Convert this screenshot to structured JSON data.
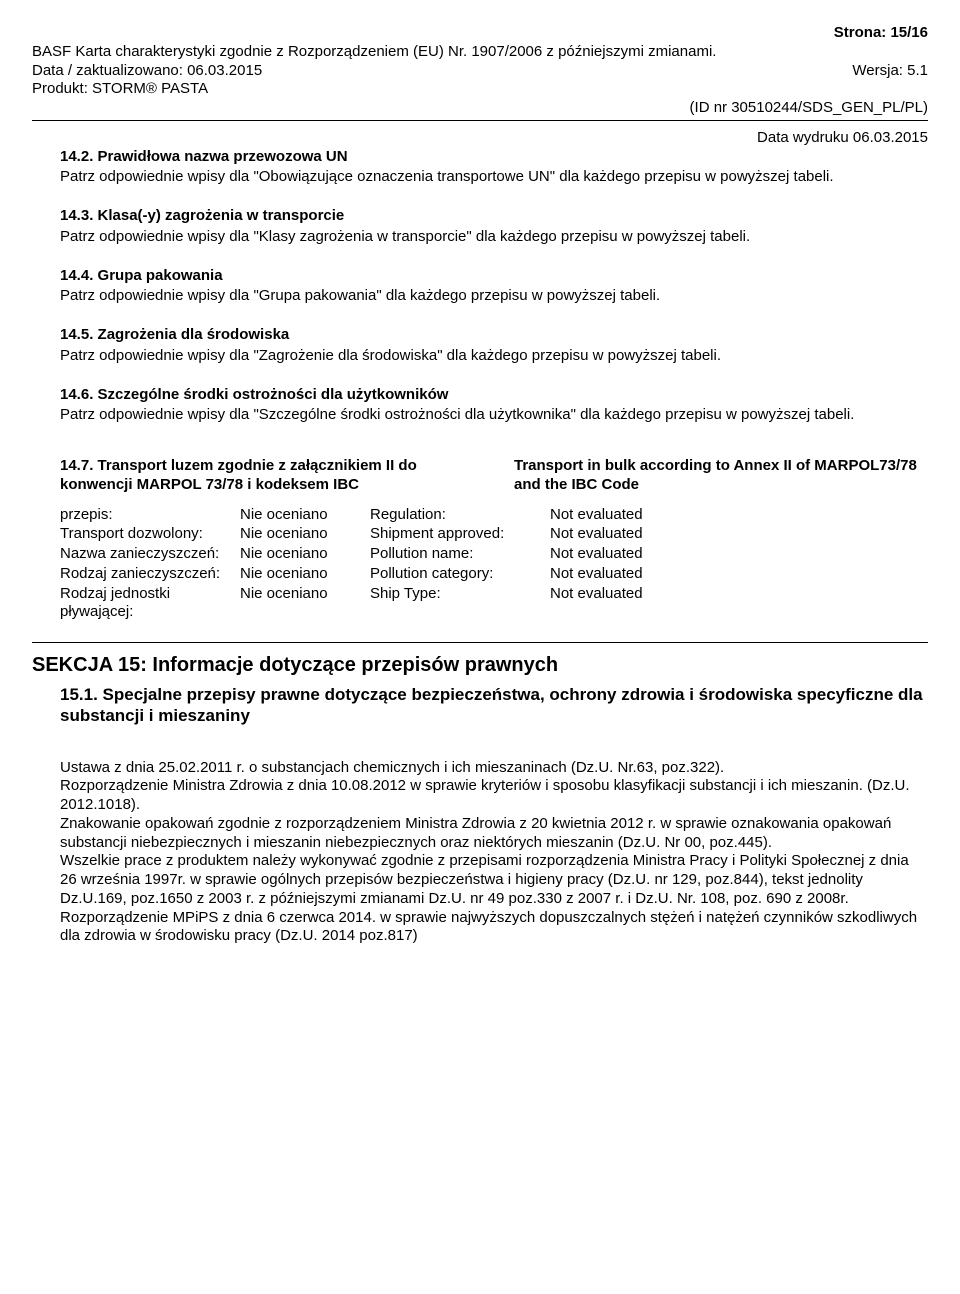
{
  "header": {
    "page_label": "Strona: 15/16",
    "line1": "BASF Karta charakterystyki zgodnie z Rozporządzeniem (EU) Nr. 1907/2006 z późniejszymi zmianami.",
    "date_left": "Data / zaktualizowano: 06.03.2015",
    "version": "Wersja: 5.1",
    "product": "Produkt: STORM® PASTA",
    "id": "(ID nr 30510244/SDS_GEN_PL/PL)",
    "print_date": "Data wydruku 06.03.2015"
  },
  "s142": {
    "title": "14.2. Prawidłowa nazwa przewozowa UN",
    "body": "Patrz odpowiednie wpisy dla \"Obowiązujące oznaczenia transportowe UN\" dla każdego przepisu w powyższej tabeli."
  },
  "s143": {
    "title": "14.3. Klasa(-y) zagrożenia w transporcie",
    "body": "Patrz odpowiednie wpisy dla \"Klasy zagrożenia w transporcie\" dla każdego przepisu w powyższej tabeli."
  },
  "s144": {
    "title": "14.4. Grupa pakowania",
    "body": "Patrz odpowiednie wpisy dla \"Grupa pakowania\" dla każdego przepisu w powyższej tabeli."
  },
  "s145": {
    "title": "14.5. Zagrożenia dla środowiska",
    "body": "Patrz odpowiednie wpisy dla \"Zagrożenie dla  środowiska\" dla każdego przepisu w powyższej tabeli."
  },
  "s146": {
    "title": "14.6. Szczególne środki ostrożności dla użytkowników",
    "body": "Patrz odpowiednie wpisy dla \"Szczególne środki ostrożności dla użytkownika\" dla każdego przepisu w powyższej tabeli."
  },
  "s147": {
    "left_title": "14.7. Transport luzem zgodnie z załącznikiem II do konwencji MARPOL 73/78 i kodeksem IBC",
    "right_title": "Transport in bulk according to Annex II of MARPOL73/78 and the IBC Code",
    "rows": [
      {
        "lab1": "przepis:",
        "val1": "Nie oceniano",
        "lab2": "Regulation:",
        "val2": "Not evaluated"
      },
      {
        "lab1": "Transport dozwolony:",
        "val1": "Nie oceniano",
        "lab2": "Shipment approved:",
        "val2": "Not evaluated"
      },
      {
        "lab1": "Nazwa zanieczyszczeń:",
        "val1": "Nie oceniano",
        "lab2": "Pollution name:",
        "val2": "Not evaluated"
      },
      {
        "lab1": "Rodzaj zanieczyszczeń:",
        "val1": "Nie oceniano",
        "lab2": "Pollution category:",
        "val2": "Not evaluated"
      },
      {
        "lab1": "Rodzaj jednostki pływającej:",
        "val1": "Nie oceniano",
        "lab2": "Ship Type:",
        "val2": "Not evaluated"
      }
    ]
  },
  "s15": {
    "title": "SEKCJA 15: Informacje dotyczące przepisów prawnych",
    "sub": "15.1. Specjalne przepisy prawne dotyczące bezpieczeństwa, ochrony zdrowia i środowiska specyficzne dla substancji i mieszaniny",
    "p1": "Ustawa z dnia 25.02.2011 r. o substancjach chemicznych i ich mieszaninach (Dz.U. Nr.63, poz.322).",
    "p2": "Rozporządzenie Ministra Zdrowia z dnia 10.08.2012 w sprawie kryteriów i sposobu klasyfikacji substancji i ich mieszanin. (Dz.U. 2012.1018).",
    "p3": "Znakowanie opakowań zgodnie z rozporządzeniem Ministra Zdrowia z 20 kwietnia 2012 r. w sprawie oznakowania opakowań substancji niebezpiecznych i mieszanin niebezpiecznych oraz niektórych mieszanin (Dz.U. Nr 00, poz.445).",
    "p4": "Wszelkie prace z produktem należy wykonywać zgodnie z przepisami rozporządzenia Ministra Pracy i Polityki Społecznej z dnia 26 września 1997r. w sprawie ogólnych przepisów bezpieczeństwa i higieny pracy (Dz.U. nr 129, poz.844), tekst jednolity Dz.U.169, poz.1650 z 2003 r. z późniejszymi zmianami Dz.U. nr 49 poz.330 z 2007 r. i Dz.U. Nr. 108, poz. 690 z 2008r.",
    "p5": "Rozporządzenie MPiPS z dnia 6 czerwca 2014. w sprawie najwyższych dopuszczalnych stężeń i natężeń czynników szkodliwych dla zdrowia w środowisku pracy (Dz.U. 2014 poz.817)"
  }
}
